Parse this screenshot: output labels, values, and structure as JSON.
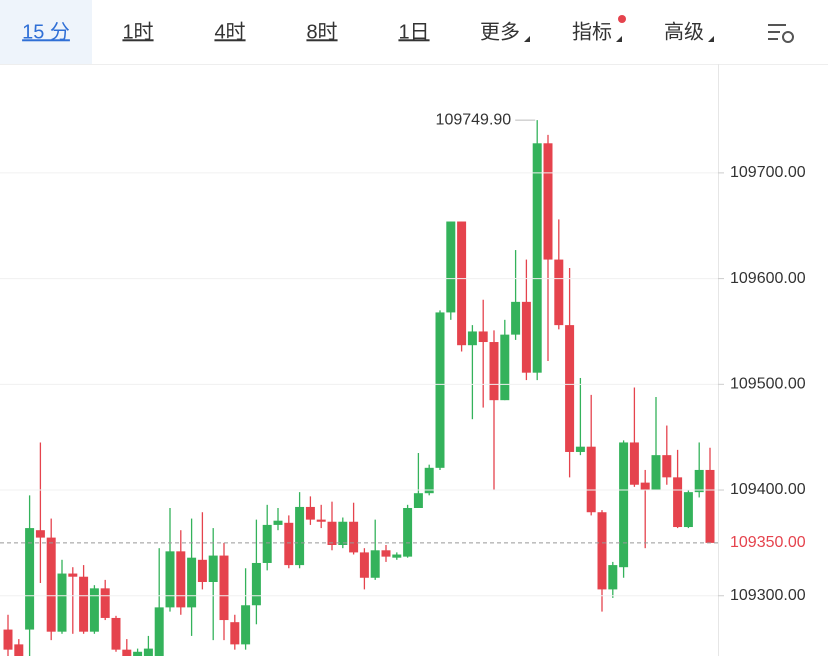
{
  "tabs": [
    "15 分",
    "1时",
    "4时",
    "8时",
    "1日",
    "更多",
    "指标",
    "高级"
  ],
  "chart_data": {
    "type": "candlestick",
    "up_color": "#34b25b",
    "down_color": "#e5434d",
    "open": [
      109268,
      109254,
      109268,
      109362,
      109355,
      109266,
      109321,
      109318,
      109266,
      109307,
      109279,
      109249,
      109243,
      109243,
      109243,
      109289,
      109342,
      109289,
      109334,
      109313,
      109338,
      109275,
      109254,
      109291,
      109331,
      109367,
      109369,
      109329,
      109384,
      109372,
      109370,
      109348,
      109370,
      109341,
      109317,
      109343,
      109336,
      109337,
      109383,
      109397,
      109421,
      109568,
      109654,
      109537,
      109550,
      109540,
      109485,
      109547,
      109578,
      109511,
      109728,
      109618,
      109556,
      109436,
      109441,
      109379,
      109306,
      109327,
      109445,
      109407,
      109400,
      109433,
      109412,
      109365,
      109398,
      109419
    ],
    "high": [
      109282,
      109259,
      109395,
      109445,
      109373,
      109334,
      109327,
      109329,
      109310,
      109315,
      109281,
      109259,
      109250,
      109262,
      109345,
      109383,
      109362,
      109373,
      109379,
      109364,
      109350,
      109282,
      109326,
      109372,
      109386,
      109383,
      109376,
      109398,
      109394,
      109386,
      109389,
      109374,
      109388,
      109345,
      109372,
      109348,
      109341,
      109386,
      109435,
      109424,
      109570,
      109654,
      109654,
      109556,
      109580,
      109551,
      109561,
      109627,
      109618,
      109749.9,
      109736,
      109656,
      109610,
      109506,
      109490,
      109381,
      109332,
      109447,
      109497,
      109419,
      109488,
      109461,
      109438,
      109400,
      109445,
      109440
    ],
    "low": [
      109243,
      109243,
      109243,
      109312,
      109258,
      109264,
      109264,
      109264,
      109264,
      109277,
      109247,
      109243,
      109243,
      109243,
      109243,
      109285,
      109282,
      109262,
      109306,
      109258,
      109258,
      109249,
      109249,
      109273,
      109324,
      109362,
      109326,
      109326,
      109367,
      109364,
      109343,
      109345,
      109339,
      109306,
      109315,
      109332,
      109334,
      109336,
      109383,
      109395,
      109419,
      109561,
      109531,
      109467,
      109478,
      109400,
      109485,
      109542,
      109504,
      109504,
      109522,
      109552,
      109412,
      109433,
      109376,
      109285,
      109298,
      109317,
      109403,
      109345,
      109400,
      109405,
      109364,
      109364,
      109393,
      109350
    ],
    "close": [
      109249,
      109243,
      109364,
      109355,
      109266,
      109321,
      109318,
      109266,
      109307,
      109279,
      109249,
      109243,
      109247,
      109250,
      109289,
      109342,
      109289,
      109336,
      109313,
      109338,
      109277,
      109254,
      109291,
      109331,
      109367,
      109371,
      109329,
      109384,
      109372,
      109370,
      109348,
      109370,
      109341,
      109317,
      109343,
      109337,
      109339,
      109383,
      109397,
      109421,
      109568,
      109654,
      109537,
      109550,
      109540,
      109485,
      109547,
      109578,
      109511,
      109728,
      109618,
      109556,
      109436,
      109441,
      109379,
      109306,
      109329,
      109445,
      109405,
      109400,
      109433,
      109412,
      109365,
      109398,
      109419,
      109350
    ],
    "ylim": [
      109243,
      109803
    ],
    "yticks": [
      {
        "value": 109300,
        "label": "109300.00"
      },
      {
        "value": 109400,
        "label": "109400.00"
      },
      {
        "value": 109500,
        "label": "109500.00"
      },
      {
        "value": 109600,
        "label": "109600.00"
      },
      {
        "value": 109700,
        "label": "109700.00"
      }
    ],
    "grid": true,
    "last_price": 109350,
    "last_price_label": "109350.00",
    "high_annotation": {
      "value": 109749.9,
      "label": "109749.90",
      "index": 49
    }
  }
}
